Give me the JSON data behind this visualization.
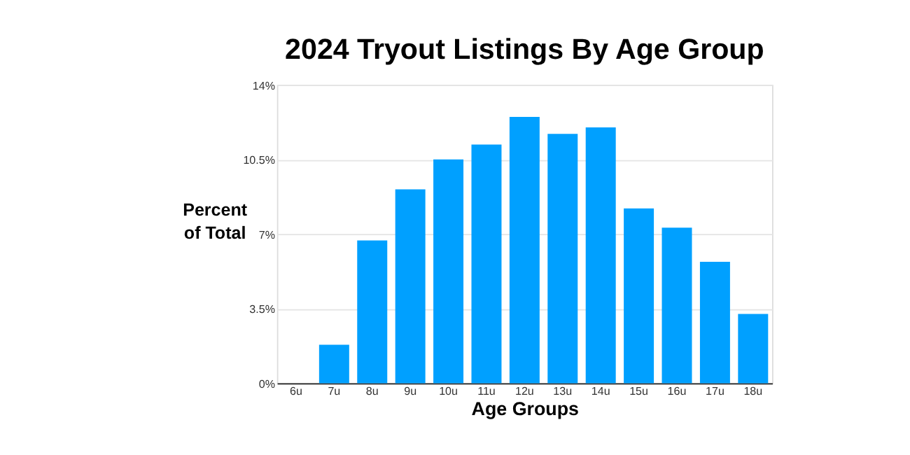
{
  "chart_data": {
    "type": "bar",
    "title": "2024 Tryout Listings By Age Group",
    "xlabel": "Age Groups",
    "ylabel": "Percent\nof Total",
    "categories": [
      "6u",
      "7u",
      "8u",
      "9u",
      "10u",
      "11u",
      "12u",
      "13u",
      "14u",
      "15u",
      "16u",
      "17u",
      "18u"
    ],
    "values": [
      0,
      1.8,
      6.7,
      9.1,
      10.5,
      11.2,
      12.5,
      11.7,
      12.0,
      8.2,
      7.3,
      5.7,
      3.25
    ],
    "color": "#00a0ff",
    "ylim": [
      0,
      14
    ],
    "yticks": [
      {
        "value": 0,
        "label": "0%"
      },
      {
        "value": 3.5,
        "label": "3.5%"
      },
      {
        "value": 7,
        "label": "7%"
      },
      {
        "value": 10.5,
        "label": "10.5%"
      },
      {
        "value": 14,
        "label": "14%"
      }
    ],
    "grid": "y"
  }
}
